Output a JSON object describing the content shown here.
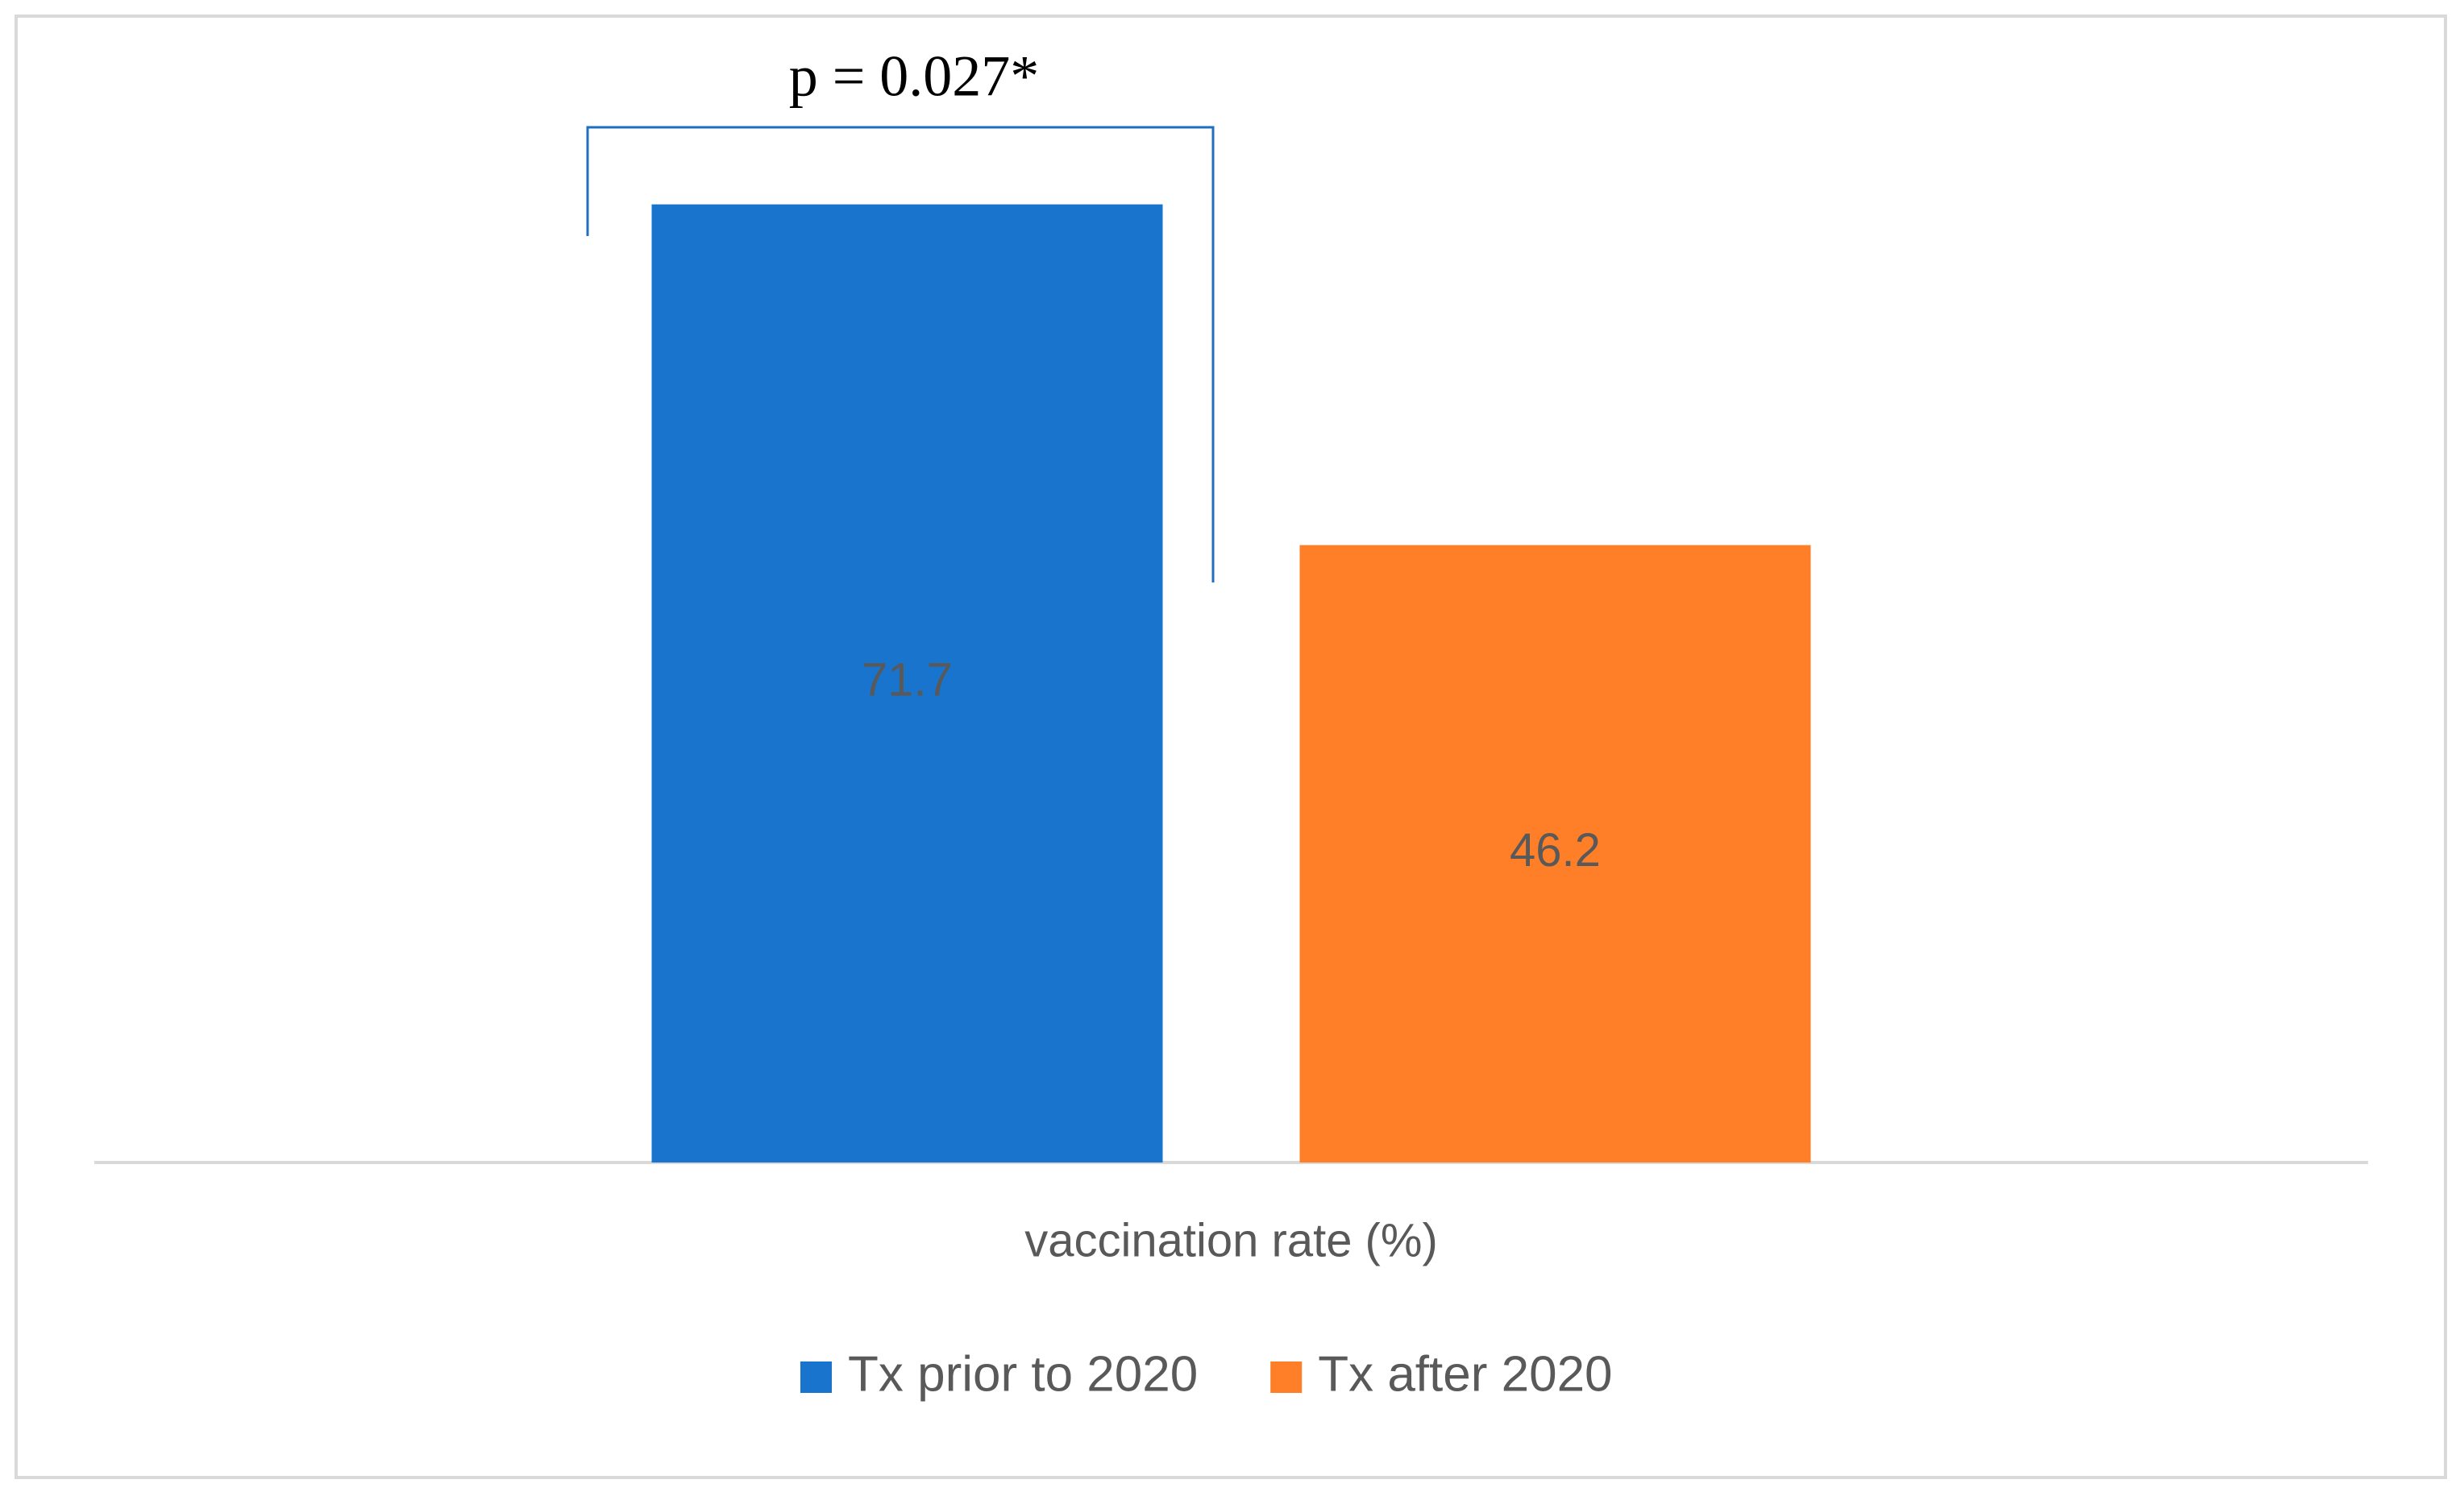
{
  "chart_data": {
    "type": "bar",
    "annotation": "p = 0.027*",
    "categories": [
      "vaccination rate (%)"
    ],
    "series": [
      {
        "name": "Tx prior to 2020",
        "color": "#1874cd",
        "values": [
          71.7
        ]
      },
      {
        "name": "Tx after 2020",
        "color": "#fe7f27",
        "values": [
          46.2
        ]
      }
    ],
    "ylim": [
      0,
      80
    ]
  }
}
